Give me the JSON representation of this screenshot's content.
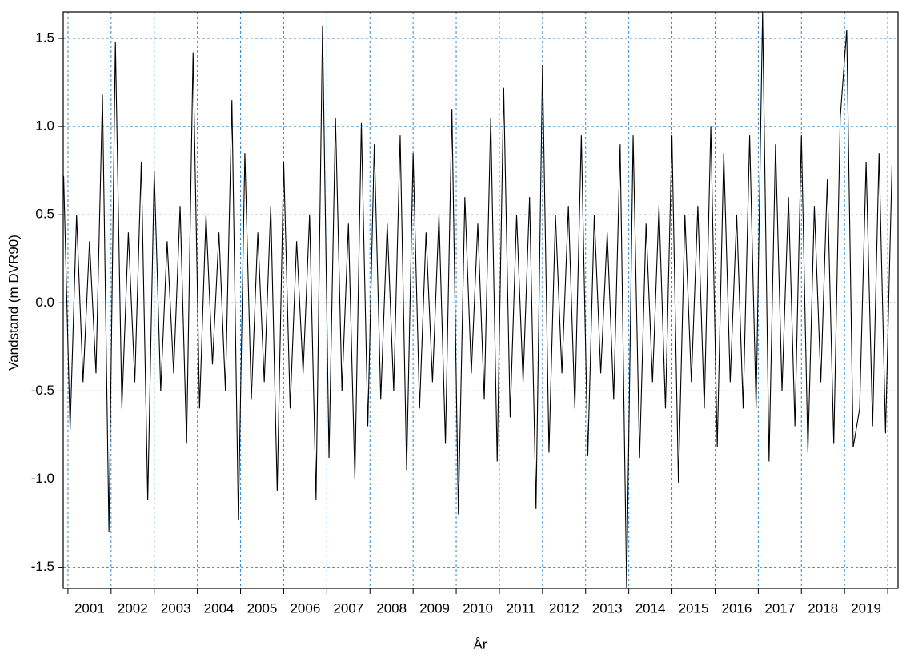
{
  "chart_data": {
    "type": "line",
    "y_label": "Vandstand (m DVR90)",
    "x_label": "År",
    "xlim": [
      2000.89,
      2020.24
    ],
    "ylim": [
      -1.62,
      1.65
    ],
    "xgrid": [
      2001,
      2002,
      2003,
      2004,
      2005,
      2006,
      2007,
      2008,
      2009,
      2010,
      2011,
      2012,
      2013,
      2014,
      2015,
      2016,
      2017,
      2018,
      2019,
      2020
    ],
    "xticks": [
      {
        "value": 2001.5,
        "label": "2001"
      },
      {
        "value": 2002.5,
        "label": "2002"
      },
      {
        "value": 2003.5,
        "label": "2003"
      },
      {
        "value": 2004.5,
        "label": "2004"
      },
      {
        "value": 2005.5,
        "label": "2005"
      },
      {
        "value": 2006.5,
        "label": "2006"
      },
      {
        "value": 2007.5,
        "label": "2007"
      },
      {
        "value": 2008.5,
        "label": "2008"
      },
      {
        "value": 2009.5,
        "label": "2009"
      },
      {
        "value": 2010.5,
        "label": "2010"
      },
      {
        "value": 2011.5,
        "label": "2011"
      },
      {
        "value": 2012.5,
        "label": "2012"
      },
      {
        "value": 2013.5,
        "label": "2013"
      },
      {
        "value": 2014.5,
        "label": "2014"
      },
      {
        "value": 2015.5,
        "label": "2015"
      },
      {
        "value": 2016.5,
        "label": "2016"
      },
      {
        "value": 2017.5,
        "label": "2017"
      },
      {
        "value": 2018.5,
        "label": "2018"
      },
      {
        "value": 2019.5,
        "label": "2019"
      }
    ],
    "yticks": [
      -1.5,
      {
        "value": -1,
        "label": "-1.0"
      },
      -0.5,
      {
        "value": 0,
        "label": "0.0"
      },
      0.5,
      {
        "value": 1,
        "label": "1.0"
      },
      1.5
    ],
    "grid": true,
    "x": [
      2000.9,
      2001.05,
      2001.2,
      2001.35,
      2001.5,
      2001.65,
      2001.8,
      2001.95,
      2002.1,
      2002.25,
      2002.4,
      2002.55,
      2002.7,
      2002.85,
      2003.0,
      2003.15,
      2003.3,
      2003.45,
      2003.6,
      2003.75,
      2003.9,
      2004.05,
      2004.2,
      2004.35,
      2004.5,
      2004.65,
      2004.8,
      2004.95,
      2005.1,
      2005.25,
      2005.4,
      2005.55,
      2005.7,
      2005.85,
      2006.0,
      2006.15,
      2006.3,
      2006.45,
      2006.6,
      2006.75,
      2006.9,
      2007.05,
      2007.2,
      2007.35,
      2007.5,
      2007.65,
      2007.8,
      2007.95,
      2008.1,
      2008.25,
      2008.4,
      2008.55,
      2008.7,
      2008.85,
      2009.0,
      2009.15,
      2009.3,
      2009.45,
      2009.6,
      2009.75,
      2009.9,
      2010.05,
      2010.2,
      2010.35,
      2010.5,
      2010.65,
      2010.8,
      2010.95,
      2011.1,
      2011.25,
      2011.4,
      2011.55,
      2011.7,
      2011.85,
      2012.0,
      2012.15,
      2012.3,
      2012.45,
      2012.6,
      2012.75,
      2012.9,
      2013.05,
      2013.2,
      2013.35,
      2013.5,
      2013.65,
      2013.8,
      2013.95,
      2014.1,
      2014.25,
      2014.4,
      2014.55,
      2014.7,
      2014.85,
      2015.0,
      2015.15,
      2015.3,
      2015.45,
      2015.6,
      2015.75,
      2015.9,
      2016.05,
      2016.2,
      2016.35,
      2016.5,
      2016.65,
      2016.8,
      2016.95,
      2017.1,
      2017.25,
      2017.4,
      2017.55,
      2017.7,
      2017.85,
      2018.0,
      2018.15,
      2018.3,
      2018.45,
      2018.6,
      2018.75,
      2018.9,
      2019.05,
      2019.2,
      2019.35,
      2019.5,
      2019.65,
      2019.8,
      2019.95,
      2020.1
    ],
    "series": [
      {
        "color": "#000000",
        "values": [
          0.72,
          -0.72,
          0.5,
          -0.45,
          0.35,
          -0.4,
          1.18,
          -1.3,
          1.48,
          -0.6,
          0.4,
          -0.45,
          0.8,
          -1.12,
          0.75,
          -0.5,
          0.35,
          -0.4,
          0.55,
          -0.8,
          1.42,
          -0.6,
          0.5,
          -0.35,
          0.4,
          -0.5,
          1.15,
          -1.23,
          0.85,
          -0.55,
          0.4,
          -0.45,
          0.55,
          -1.07,
          0.8,
          -0.6,
          0.35,
          -0.4,
          0.5,
          -1.12,
          1.57,
          -0.88,
          1.05,
          -0.5,
          0.45,
          -1.0,
          1.02,
          -0.7,
          0.9,
          -0.55,
          0.45,
          -0.5,
          0.95,
          -0.95,
          0.85,
          -0.6,
          0.4,
          -0.45,
          0.5,
          -0.8,
          1.1,
          -1.2,
          0.6,
          -0.4,
          0.45,
          -0.55,
          1.05,
          -0.9,
          1.22,
          -0.65,
          0.5,
          -0.45,
          0.6,
          -1.17,
          1.35,
          -0.85,
          0.5,
          -0.4,
          0.55,
          -0.6,
          0.95,
          -0.87,
          0.5,
          -0.4,
          0.4,
          -0.55,
          0.9,
          -1.62,
          0.95,
          -0.88,
          0.45,
          -0.45,
          0.55,
          -0.6,
          0.95,
          -1.02,
          0.5,
          -0.45,
          0.55,
          -0.6,
          1.0,
          -0.82,
          0.85,
          -0.45,
          0.5,
          -0.6,
          0.95,
          -0.6,
          1.65,
          -0.9,
          0.9,
          -0.5,
          0.6,
          -0.7,
          0.95,
          -0.85,
          0.55,
          -0.45,
          0.7,
          -0.8,
          1.05,
          1.55,
          -0.82,
          -0.6,
          0.8,
          -0.7,
          0.85,
          -0.74,
          0.78
        ]
      }
    ]
  }
}
